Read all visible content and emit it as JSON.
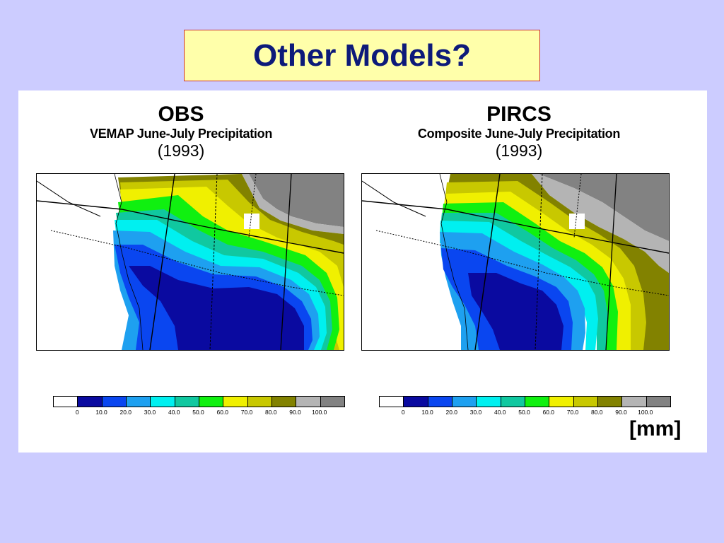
{
  "title": "Other Models?",
  "left": {
    "model": "OBS",
    "subtitle": "VEMAP June-July Precipitation",
    "year": "(1993)"
  },
  "right": {
    "model": "PIRCS",
    "subtitle": "Composite June-July Precipitation",
    "year": "(1993)"
  },
  "colorbar": {
    "colors": [
      "#ffffff",
      "#0a0aa0",
      "#0a46f0",
      "#1ea0f0",
      "#00f0f0",
      "#10c8a0",
      "#10f010",
      "#f0f000",
      "#c8c800",
      "#828200",
      "#b4b4b4",
      "#828282"
    ],
    "labels": [
      "0",
      "10.0",
      "20.0",
      "30.0",
      "40.0",
      "50.0",
      "60.0",
      "70.0",
      "80.0",
      "90.0",
      "100.0"
    ]
  },
  "unit": "[mm]"
}
